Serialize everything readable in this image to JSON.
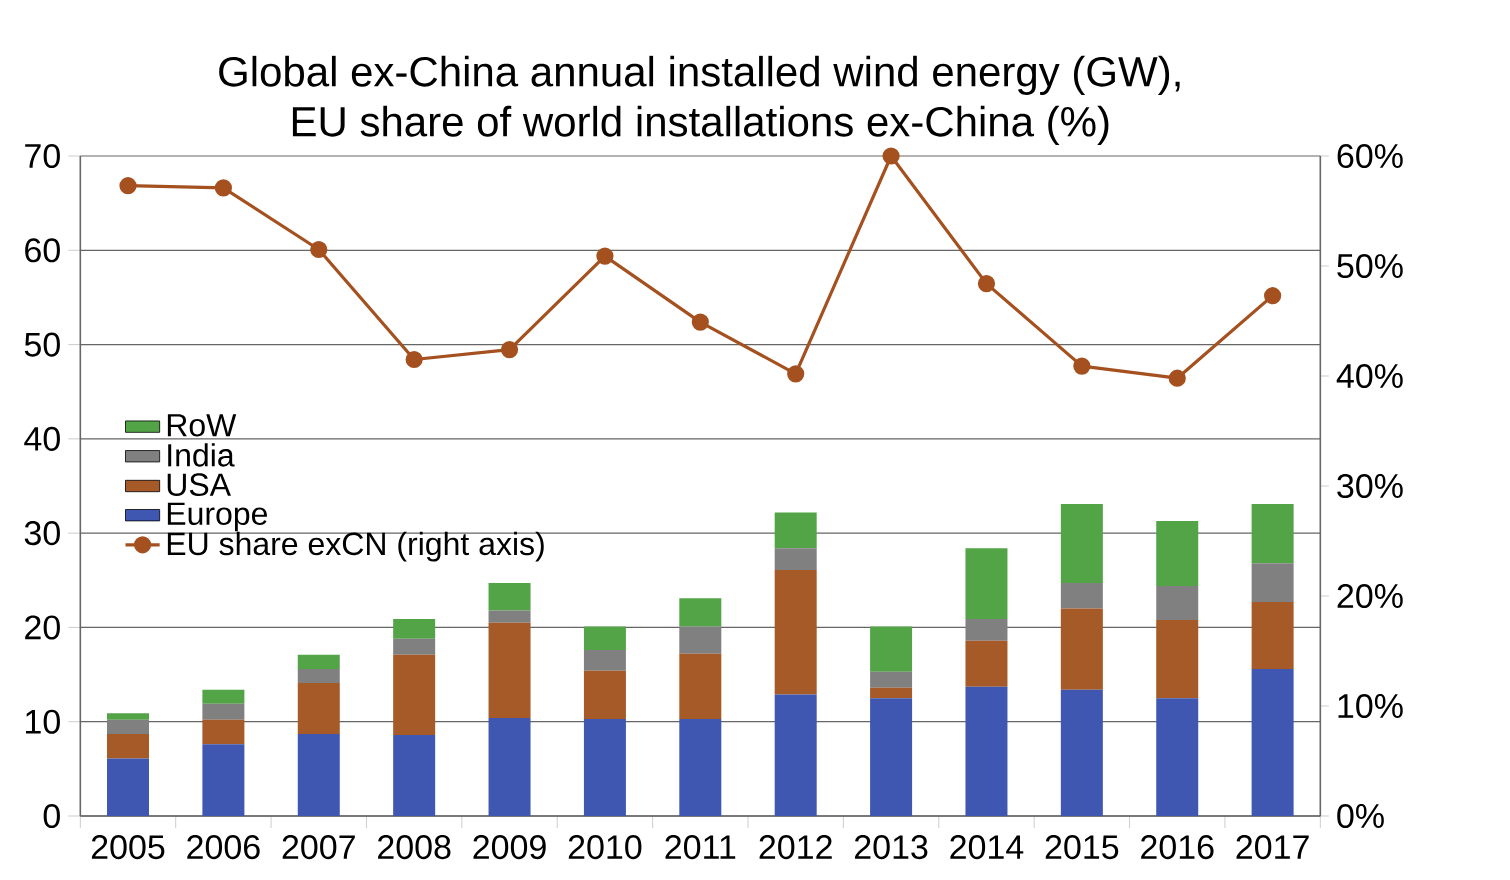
{
  "chart_data": {
    "type": "bar",
    "title": "Global ex-China annual installed wind energy (GW),",
    "subtitle": "EU share of world installations ex-China (%)",
    "categories": [
      "2005",
      "2006",
      "2007",
      "2008",
      "2009",
      "2010",
      "2011",
      "2012",
      "2013",
      "2014",
      "2015",
      "2016",
      "2017"
    ],
    "stacked": true,
    "series": [
      {
        "name": "Europe",
        "color": "#3f57b0",
        "values": [
          6.1,
          7.6,
          8.7,
          8.6,
          10.4,
          10.3,
          10.3,
          12.9,
          12.5,
          13.7,
          13.4,
          12.5,
          15.6
        ]
      },
      {
        "name": "USA",
        "color": "#a65a28",
        "values": [
          2.6,
          2.6,
          5.4,
          8.5,
          10.1,
          5.1,
          6.9,
          13.2,
          1.1,
          4.9,
          8.6,
          8.3,
          7.1
        ]
      },
      {
        "name": "India",
        "color": "#808080",
        "values": [
          1.5,
          1.7,
          1.5,
          1.7,
          1.3,
          2.2,
          2.9,
          2.3,
          1.7,
          2.3,
          2.7,
          3.6,
          4.1
        ]
      },
      {
        "name": "RoW",
        "color": "#52a447",
        "values": [
          0.7,
          1.5,
          1.5,
          2.1,
          2.9,
          2.5,
          3.0,
          3.8,
          4.8,
          7.5,
          8.4,
          6.9,
          6.3
        ]
      },
      {
        "name": "EU share exCN (right axis)",
        "type": "line",
        "axis": "y2",
        "color": "#a5501f",
        "values": [
          57.3,
          57.1,
          51.5,
          41.5,
          42.4,
          50.9,
          44.9,
          40.2,
          60,
          48.4,
          40.9,
          39.8,
          47.3
        ]
      }
    ],
    "ylim": [
      0,
      70
    ],
    "yticks": [
      0,
      10,
      20,
      30,
      40,
      50,
      60,
      70
    ],
    "y2lim": [
      0,
      60
    ],
    "y2ticks": [
      {
        "value": 0,
        "label": "0%"
      },
      {
        "value": 10,
        "label": "10%"
      },
      {
        "value": 20,
        "label": "20%"
      },
      {
        "value": 30,
        "label": "30%"
      },
      {
        "value": 40,
        "label": "40%"
      },
      {
        "value": 50,
        "label": "50%"
      },
      {
        "value": 60,
        "label": "60%"
      }
    ],
    "grid": "y",
    "legend": "left",
    "marker": "circle",
    "line_style": "solid"
  }
}
